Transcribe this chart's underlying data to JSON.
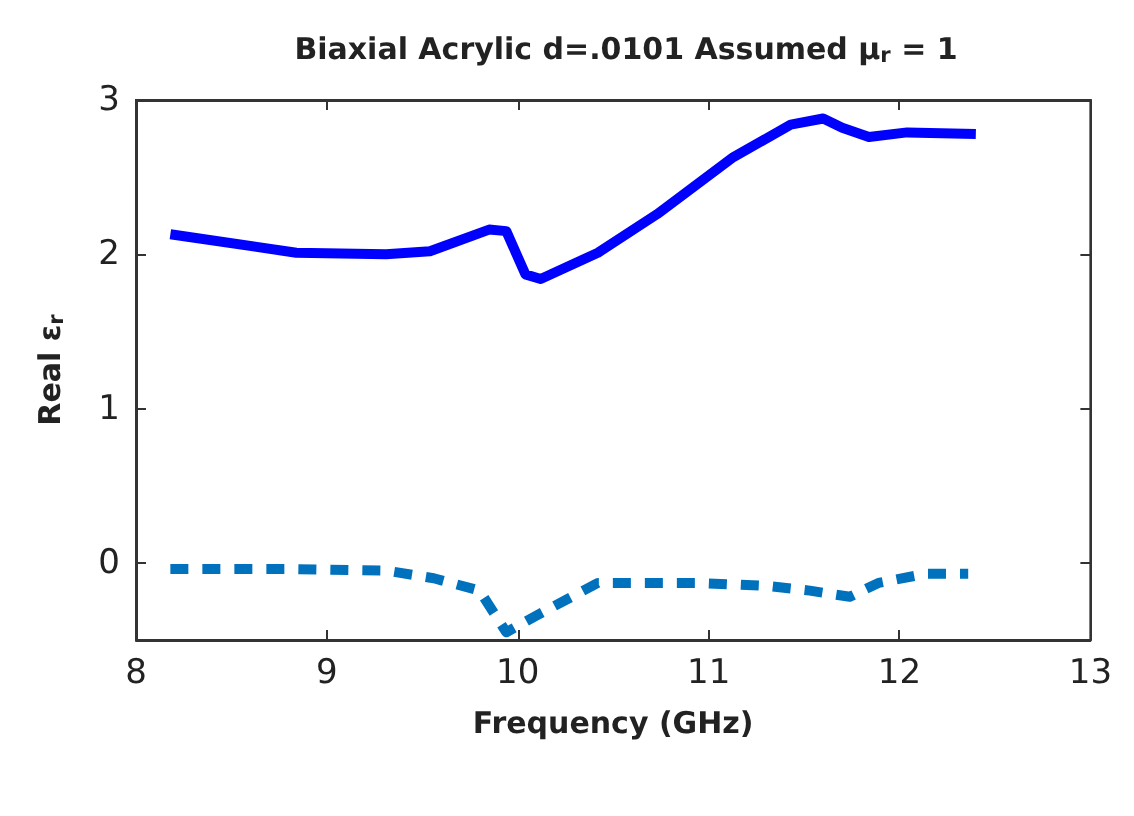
{
  "chart_data": {
    "type": "line",
    "title": "Biaxial Acrylic d=.0101 Assumed μ$_{r}$ = 1",
    "xlabel": "Frequency (GHz)",
    "ylabel": "Real ε$_{r}$",
    "series": [
      {
        "color": "#0000ff",
        "line_style": "solid",
        "x": [
          8.18,
          8.84,
          9.31,
          9.54,
          9.85,
          9.94,
          10.04,
          10.12,
          10.42,
          10.73,
          11.13,
          11.43,
          11.6,
          11.7,
          11.84,
          12.04,
          12.4
        ],
        "values": [
          2.13,
          2.01,
          2.0,
          2.02,
          2.16,
          2.15,
          1.87,
          1.84,
          2.01,
          2.26,
          2.63,
          2.84,
          2.88,
          2.82,
          2.76,
          2.79,
          2.78
        ]
      },
      {
        "color": "#0072bd",
        "line_style": "dashed",
        "x": [
          8.18,
          8.81,
          9.31,
          9.56,
          9.8,
          9.94,
          10.1,
          10.42,
          10.93,
          11.31,
          11.53,
          11.74,
          11.89,
          12.14,
          12.36
        ],
        "values": [
          -0.04,
          -0.04,
          -0.05,
          -0.1,
          -0.18,
          -0.45,
          -0.34,
          -0.13,
          -0.13,
          -0.15,
          -0.18,
          -0.22,
          -0.13,
          -0.07,
          -0.07
        ]
      }
    ],
    "xlim": [
      8,
      13
    ],
    "xticks": [
      8,
      9,
      10,
      11,
      12,
      13
    ],
    "ylim": [
      -0.5,
      3
    ],
    "yticks": [
      0,
      1,
      2,
      3
    ],
    "grid": false,
    "marker": "none"
  }
}
